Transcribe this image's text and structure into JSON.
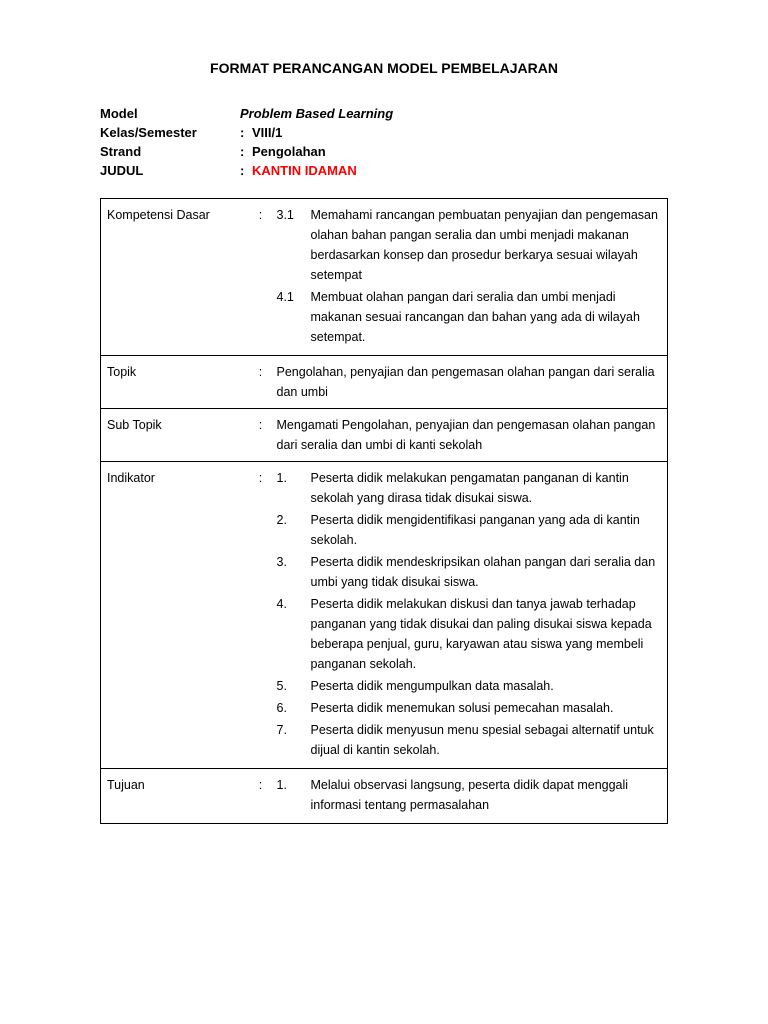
{
  "title": "FORMAT   PERANCANGAN MODEL PEMBELAJARAN",
  "header": {
    "model_label": "Model",
    "model_value": "Problem Based Learning",
    "kelas_label": "Kelas/Semester",
    "kelas_value": "VIII/1",
    "strand_label": "Strand",
    "strand_value": "Pengolahan",
    "judul_label": "JUDUL",
    "judul_value": "KANTIN IDAMAN"
  },
  "rows": {
    "kd_label": "Kompetensi Dasar",
    "kd_31_num": "3.1",
    "kd_31_text": "Memahami rancangan pembuatan penyajian dan pengemasan olahan bahan pangan seralia dan umbi menjadi makanan berdasarkan konsep dan prosedur berkarya sesuai wilayah setempat",
    "kd_41_num": "4.1",
    "kd_41_text": "Membuat olahan pangan dari seralia dan umbi menjadi makanan sesuai rancangan dan bahan yang ada di wilayah setempat.",
    "topik_label": "Topik",
    "topik_text": "Pengolahan, penyajian dan pengemasan olahan pangan dari seralia dan umbi",
    "subtopik_label": "Sub Topik",
    "subtopik_text": "Mengamati Pengolahan, penyajian dan pengemasan olahan pangan dari seralia dan umbi di kanti sekolah",
    "indikator_label": "Indikator",
    "ind_1_num": "1.",
    "ind_1_text": "Peserta didik melakukan pengamatan panganan di kantin sekolah yang dirasa tidak disukai siswa.",
    "ind_2_num": "2.",
    "ind_2_text": "Peserta didik mengidentifikasi panganan yang ada di kantin sekolah.",
    "ind_3_num": "3.",
    "ind_3_text": "Peserta didik mendeskripsikan olahan pangan dari seralia dan umbi yang tidak disukai siswa.",
    "ind_4_num": "4.",
    "ind_4_text": "Peserta didik melakukan diskusi dan tanya jawab  terhadap panganan yang tidak disukai dan paling disukai siswa kepada beberapa penjual, guru, karyawan atau siswa yang membeli panganan sekolah.",
    "ind_5_num": "5.",
    "ind_5_text": "Peserta didik mengumpulkan data masalah.",
    "ind_6_num": "6.",
    "ind_6_text": "Peserta didik menemukan solusi pemecahan masalah.",
    "ind_7_num": "7.",
    "ind_7_text": "Peserta didik menyusun menu spesial sebagai alternatif untuk dijual di kantin sekolah.",
    "tujuan_label": "Tujuan",
    "tuj_1_num": "1.",
    "tuj_1_text": "Melalui observasi langsung, peserta didik dapat menggali informasi tentang permasalahan"
  },
  "colon": ":"
}
